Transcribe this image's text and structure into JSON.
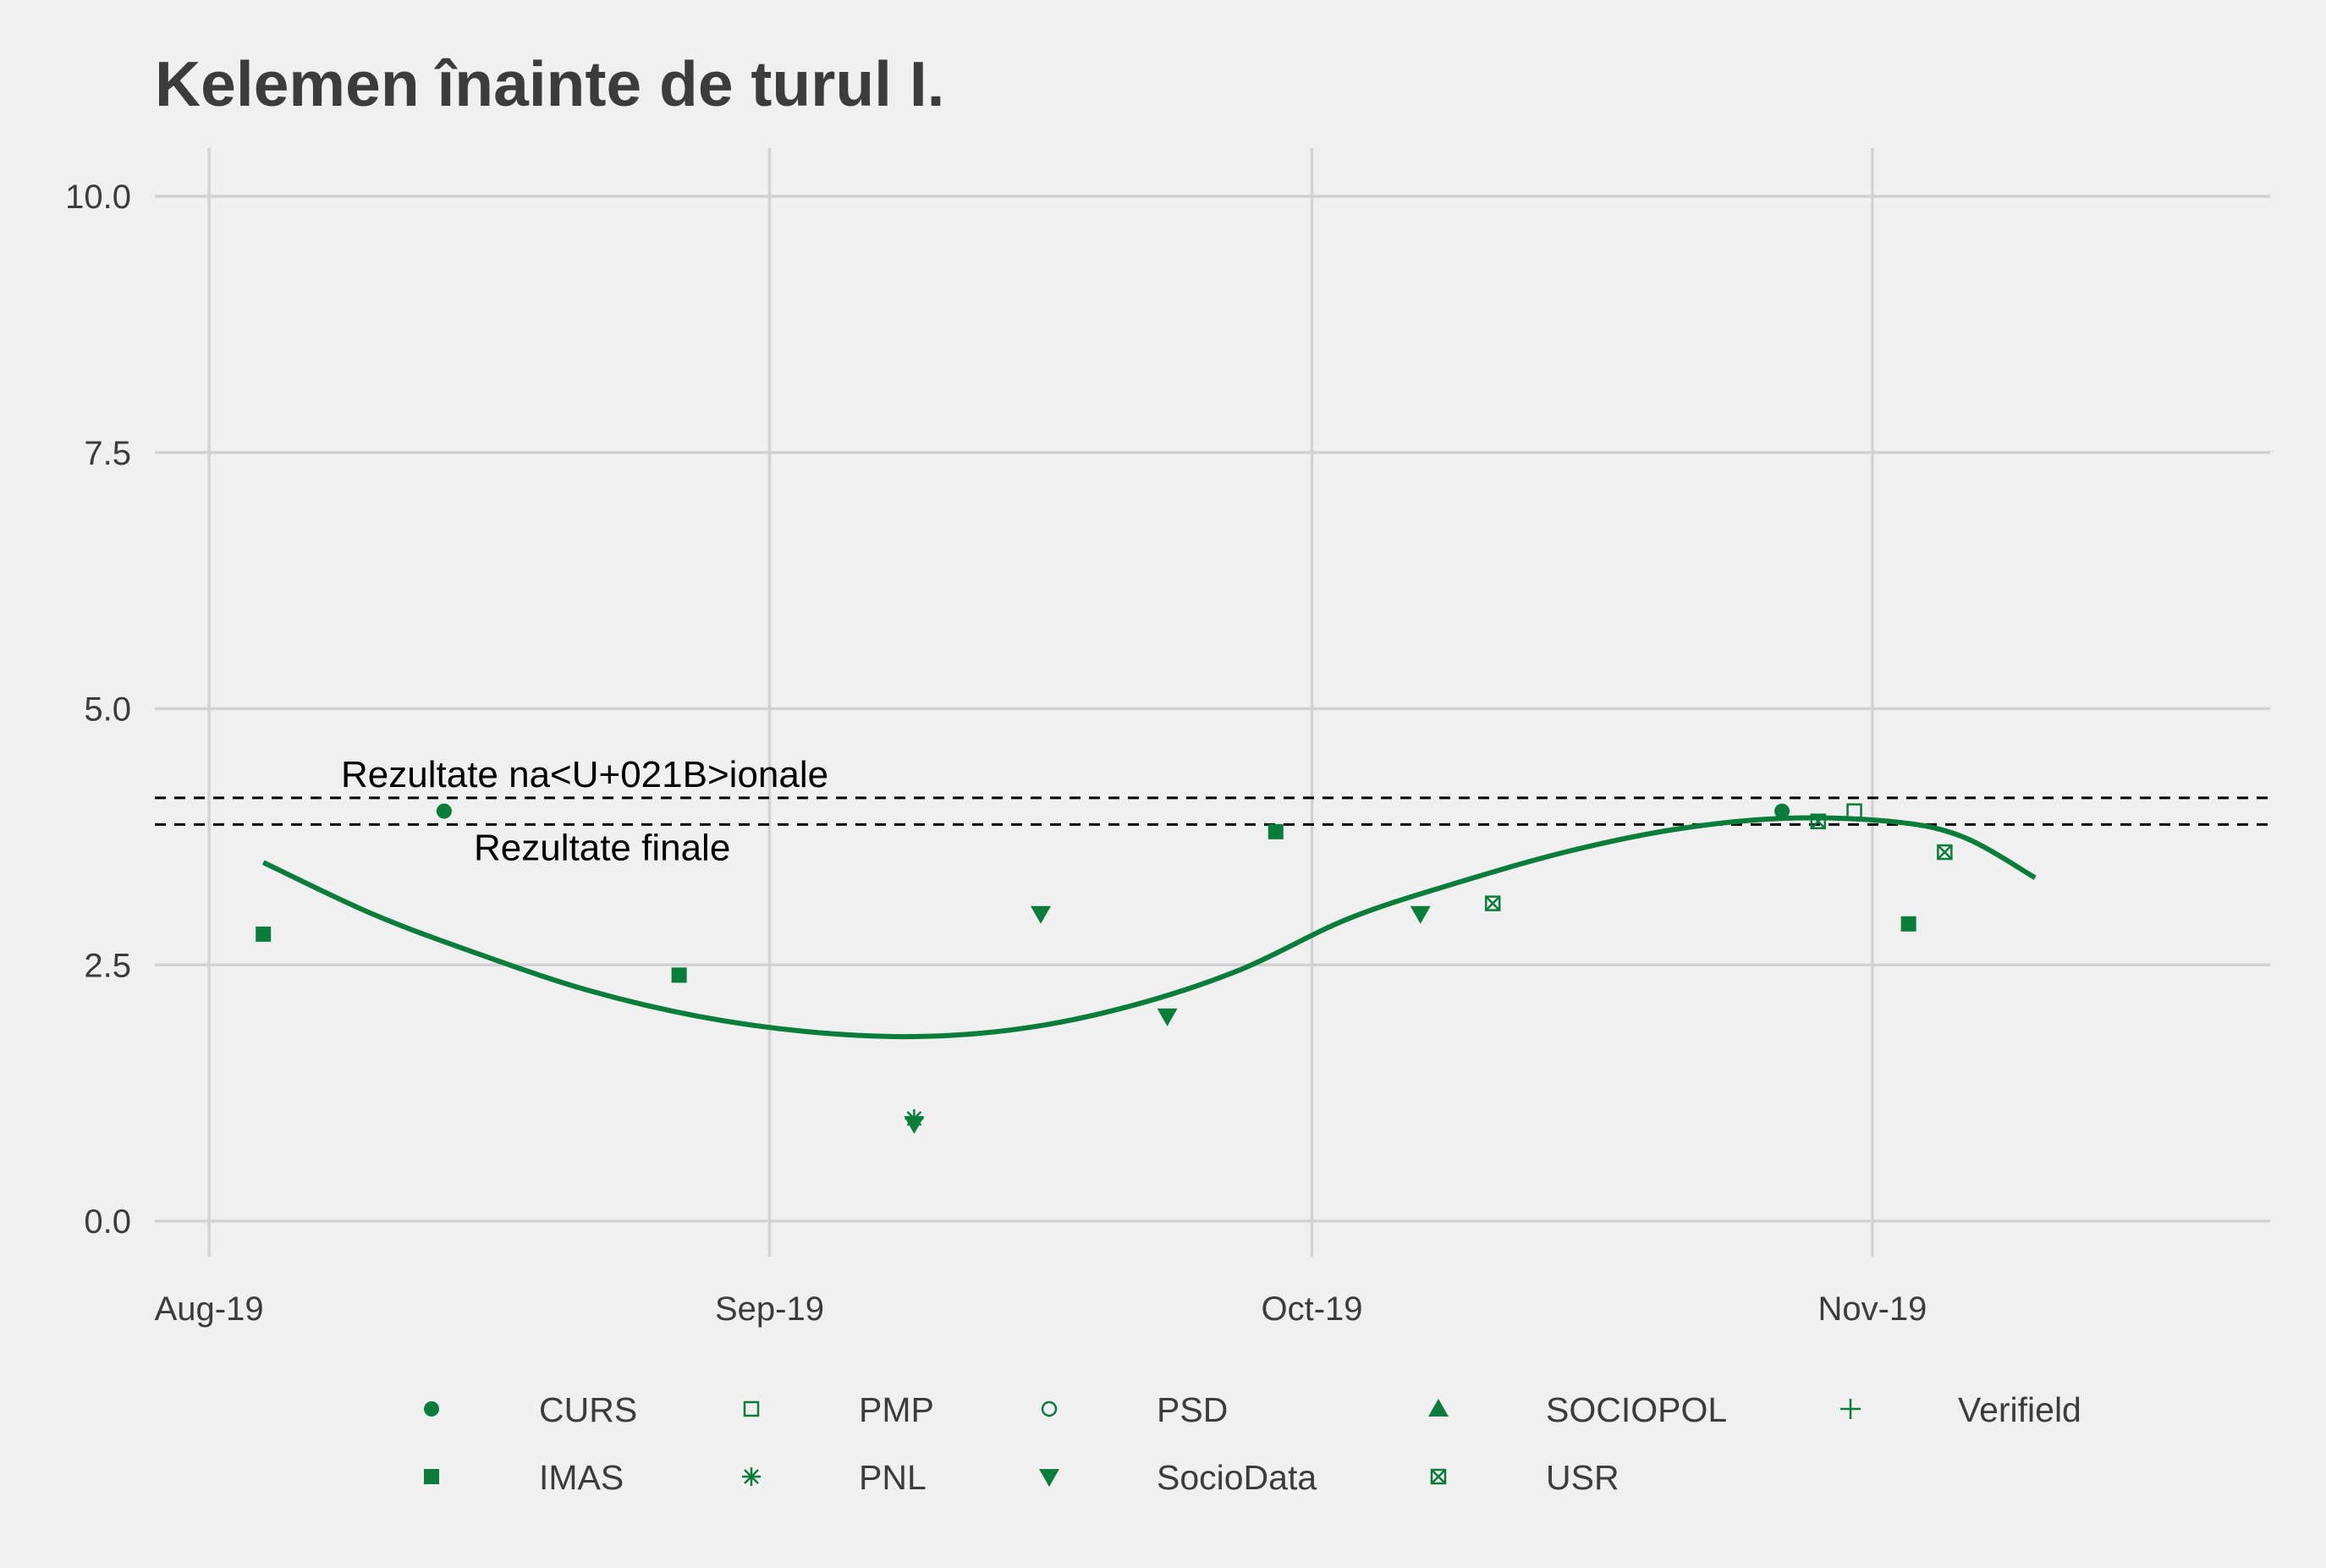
{
  "colors": {
    "series": "#0a7d3a",
    "background": "#f0f0f0",
    "grid": "#d2d2d2",
    "text": "#3c3c3c"
  },
  "chart_data": {
    "type": "scatter",
    "title": "Kelemen înainte de turul I.",
    "xlabel": "",
    "ylabel": "",
    "x_ticks": [
      "Aug-19",
      "Sep-19",
      "Oct-19",
      "Nov-19"
    ],
    "y_ticks": [
      "0.0",
      "2.5",
      "5.0",
      "7.5",
      "10.0"
    ],
    "ylim": [
      0,
      10
    ],
    "xlim": [
      "2019-07-29",
      "2019-11-23"
    ],
    "grid": true,
    "legend_position": "bottom",
    "reference_lines": [
      {
        "label": "Rezultate na<U+021B>ionale",
        "value": 4.13
      },
      {
        "label": "Rezultate finale",
        "value": 3.87
      }
    ],
    "series": [
      {
        "name": "CURS",
        "marker": "filled-circle",
        "points": [
          {
            "x": "2019-08-14",
            "y": 4.0
          },
          {
            "x": "2019-10-27",
            "y": 4.0
          }
        ]
      },
      {
        "name": "IMAS",
        "marker": "filled-square",
        "points": [
          {
            "x": "2019-08-04",
            "y": 2.8
          },
          {
            "x": "2019-08-27",
            "y": 2.4
          },
          {
            "x": "2019-09-29",
            "y": 3.8
          },
          {
            "x": "2019-11-03",
            "y": 2.9
          }
        ]
      },
      {
        "name": "PMP",
        "marker": "open-square",
        "points": [
          {
            "x": "2019-10-31",
            "y": 4.0
          }
        ]
      },
      {
        "name": "PNL",
        "marker": "asterisk",
        "points": [
          {
            "x": "2019-09-09",
            "y": 1.0
          }
        ]
      },
      {
        "name": "PSD",
        "marker": "open-circle",
        "points": []
      },
      {
        "name": "SocioData",
        "marker": "filled-triangle-down",
        "points": [
          {
            "x": "2019-09-09",
            "y": 0.95
          },
          {
            "x": "2019-09-16",
            "y": 3.0
          },
          {
            "x": "2019-09-23",
            "y": 2.0
          },
          {
            "x": "2019-10-07",
            "y": 3.0
          }
        ]
      },
      {
        "name": "SOCIOPOL",
        "marker": "filled-triangle-up",
        "points": []
      },
      {
        "name": "USR",
        "marker": "boxed-x",
        "points": [
          {
            "x": "2019-10-11",
            "y": 3.1
          },
          {
            "x": "2019-10-29",
            "y": 3.9
          },
          {
            "x": "2019-11-05",
            "y": 3.6
          }
        ]
      },
      {
        "name": "Verifield",
        "marker": "plus",
        "points": []
      }
    ],
    "trend": [
      {
        "x": "2019-08-04",
        "y": 3.5
      },
      {
        "x": "2019-08-10",
        "y": 3.0
      },
      {
        "x": "2019-08-16",
        "y": 2.6
      },
      {
        "x": "2019-08-22",
        "y": 2.25
      },
      {
        "x": "2019-08-28",
        "y": 2.0
      },
      {
        "x": "2019-09-03",
        "y": 1.85
      },
      {
        "x": "2019-09-09",
        "y": 1.8
      },
      {
        "x": "2019-09-15",
        "y": 1.88
      },
      {
        "x": "2019-09-21",
        "y": 2.1
      },
      {
        "x": "2019-09-27",
        "y": 2.45
      },
      {
        "x": "2019-10-03",
        "y": 2.95
      },
      {
        "x": "2019-10-09",
        "y": 3.3
      },
      {
        "x": "2019-10-15",
        "y": 3.6
      },
      {
        "x": "2019-10-21",
        "y": 3.82
      },
      {
        "x": "2019-10-27",
        "y": 3.93
      },
      {
        "x": "2019-11-02",
        "y": 3.9
      },
      {
        "x": "2019-11-06",
        "y": 3.75
      },
      {
        "x": "2019-11-10",
        "y": 3.35
      }
    ]
  }
}
